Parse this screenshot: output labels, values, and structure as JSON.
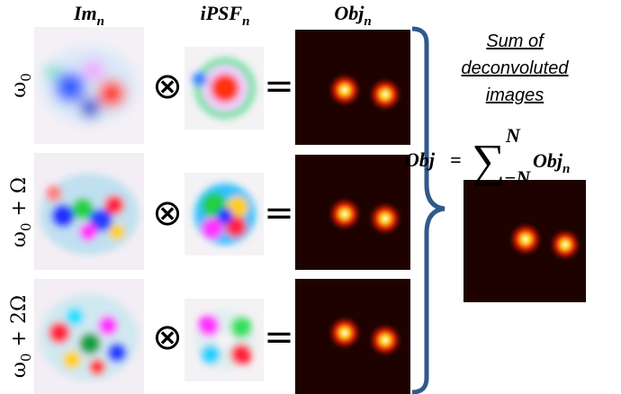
{
  "columns": [
    {
      "base": "Im",
      "sub": "n"
    },
    {
      "base": "iPSF",
      "sub": "n"
    },
    {
      "base": "Obj",
      "sub": "n"
    }
  ],
  "rows": [
    {
      "base": "ω",
      "sub": "0"
    },
    {
      "base": "ω",
      "sub": "0",
      "tail": " + Ω"
    },
    {
      "base": "ω",
      "sub": "0",
      "tail": " + 2Ω"
    }
  ],
  "operators": {
    "convolve": "⊗",
    "equals": "="
  },
  "summary": {
    "caption": [
      "Sum of",
      "deconvoluted",
      "images"
    ],
    "formula": {
      "lhs": "Obj",
      "equals": "=",
      "sum": "∑",
      "upper": "N",
      "lower": "−N",
      "term": {
        "base": "Obj",
        "sub": "n"
      }
    }
  }
}
